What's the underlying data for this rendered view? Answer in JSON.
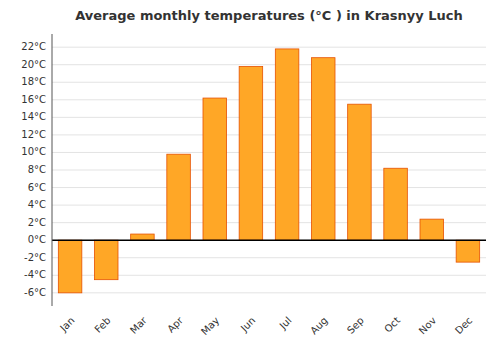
{
  "chart_data": {
    "type": "bar",
    "title": "Average monthly temperatures (°C ) in Krasnyy Luch",
    "categories": [
      "Jan",
      "Feb",
      "Mar",
      "Apr",
      "May",
      "Jun",
      "Jul",
      "Aug",
      "Sep",
      "Oct",
      "Nov",
      "Dec"
    ],
    "values": [
      -6.0,
      -4.5,
      0.7,
      9.8,
      16.2,
      19.8,
      21.8,
      20.8,
      15.5,
      8.2,
      2.4,
      -2.5
    ],
    "color": "#FFA726",
    "ylim": [
      -7.5,
      23.5
    ],
    "yticks": [
      {
        "value": -6,
        "label": "-6°C"
      },
      {
        "value": -4,
        "label": "-4°C"
      },
      {
        "value": -2,
        "label": "-2°C"
      },
      {
        "value": 0,
        "label": "0°C"
      },
      {
        "value": 2,
        "label": "2°C"
      },
      {
        "value": 4,
        "label": "4°C"
      },
      {
        "value": 6,
        "label": "6°C"
      },
      {
        "value": 8,
        "label": "8°C"
      },
      {
        "value": 10,
        "label": "10°C"
      },
      {
        "value": 12,
        "label": "12°C"
      },
      {
        "value": 14,
        "label": "14°C"
      },
      {
        "value": 16,
        "label": "16°C"
      },
      {
        "value": 18,
        "label": "18°C"
      },
      {
        "value": 20,
        "label": "20°C"
      },
      {
        "value": 22,
        "label": "22°C"
      }
    ],
    "grid": true
  }
}
